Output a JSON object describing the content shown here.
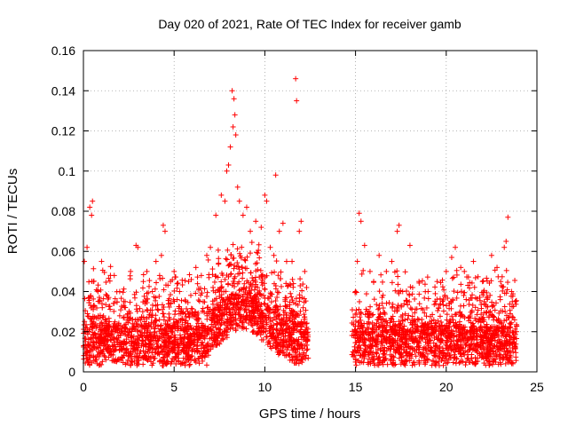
{
  "chart_data": {
    "type": "scatter",
    "title": "Day 020 of 2021, Rate Of TEC Index for receiver gamb",
    "xlabel": "GPS time / hours",
    "ylabel": "ROTI / TECUs",
    "xlim": [
      0,
      25
    ],
    "ylim": [
      0,
      0.16
    ],
    "x_ticks": [
      0,
      5,
      10,
      15,
      20,
      25
    ],
    "y_ticks": [
      0,
      0.02,
      0.04,
      0.06,
      0.08,
      0.1,
      0.12,
      0.14,
      0.16
    ],
    "x_tick_labels": [
      "0",
      "5",
      "10",
      "15",
      "20",
      "25"
    ],
    "y_tick_labels": [
      "0",
      "0.02",
      "0.04",
      "0.06",
      "0.08",
      "0.1",
      "0.12",
      "0.14",
      "0.16"
    ],
    "grid": true,
    "marker": "+",
    "color": "#ff0000",
    "data_gap_hours": [
      12.4,
      14.8
    ],
    "series": [
      {
        "name": "ROTI",
        "x": [
          0.05,
          0.2,
          0.35,
          0.45,
          0.5,
          0.55,
          0.8,
          1.0,
          1.3,
          1.7,
          2.0,
          2.3,
          2.6,
          2.9,
          3.0,
          3.3,
          3.5,
          3.8,
          4.0,
          4.2,
          4.3,
          4.4,
          4.5,
          4.8,
          5.0,
          5.3,
          5.8,
          6.2,
          6.5,
          6.8,
          7.0,
          7.3,
          7.6,
          7.8,
          7.9,
          8.0,
          8.1,
          8.2,
          8.25,
          8.3,
          8.35,
          8.4,
          8.5,
          8.6,
          8.8,
          9.0,
          9.2,
          9.5,
          9.8,
          10.0,
          10.1,
          10.3,
          10.5,
          10.6,
          10.8,
          11.0,
          11.2,
          11.5,
          11.7,
          11.75,
          11.9,
          12.0,
          12.2,
          12.3,
          15.0,
          15.1,
          15.2,
          15.3,
          15.5,
          15.8,
          16.0,
          16.3,
          16.7,
          17.0,
          17.3,
          17.4,
          17.6,
          18.0,
          18.5,
          19.0,
          19.5,
          20.0,
          20.3,
          20.5,
          20.8,
          21.0,
          21.5,
          22.0,
          22.5,
          22.8,
          23.0,
          23.2,
          23.3,
          23.4,
          23.6,
          23.8
        ],
        "y": [
          0.055,
          0.062,
          0.082,
          0.078,
          0.085,
          0.045,
          0.04,
          0.055,
          0.038,
          0.048,
          0.04,
          0.035,
          0.05,
          0.063,
          0.062,
          0.045,
          0.05,
          0.04,
          0.055,
          0.048,
          0.058,
          0.073,
          0.07,
          0.045,
          0.05,
          0.04,
          0.045,
          0.052,
          0.048,
          0.058,
          0.062,
          0.078,
          0.088,
          0.085,
          0.1,
          0.103,
          0.112,
          0.14,
          0.122,
          0.136,
          0.128,
          0.118,
          0.092,
          0.085,
          0.078,
          0.082,
          0.07,
          0.075,
          0.072,
          0.088,
          0.085,
          0.062,
          0.058,
          0.098,
          0.07,
          0.074,
          0.055,
          0.055,
          0.146,
          0.135,
          0.07,
          0.075,
          0.05,
          0.042,
          0.04,
          0.055,
          0.079,
          0.075,
          0.063,
          0.05,
          0.045,
          0.058,
          0.05,
          0.055,
          0.07,
          0.073,
          0.04,
          0.063,
          0.045,
          0.04,
          0.045,
          0.05,
          0.057,
          0.062,
          0.052,
          0.05,
          0.055,
          0.045,
          0.058,
          0.052,
          0.045,
          0.062,
          0.065,
          0.077,
          0.04,
          0.035
        ]
      }
    ]
  }
}
